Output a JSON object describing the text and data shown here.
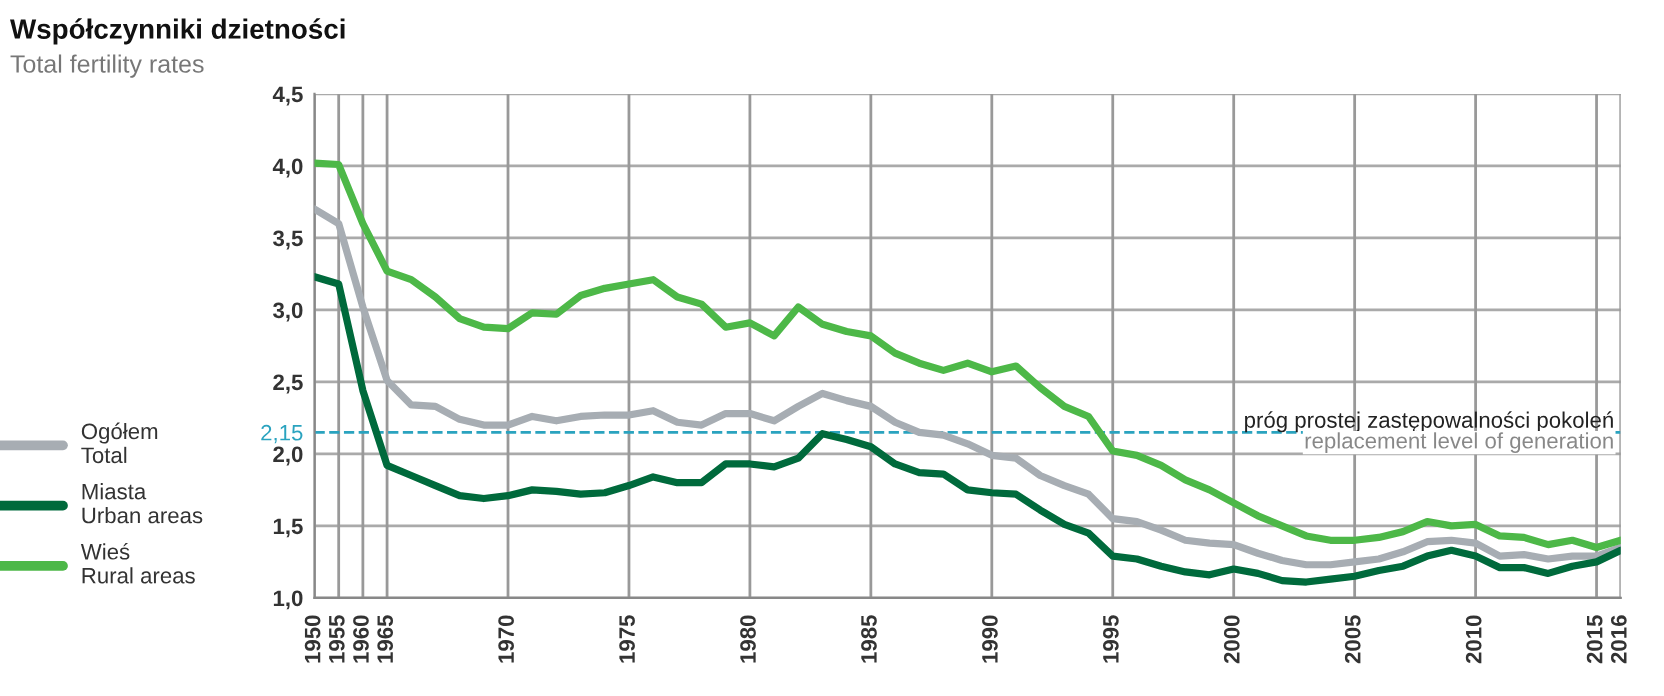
{
  "chart_data": {
    "type": "line",
    "title": "Współczynniki dzietności",
    "subtitle": "Total fertility rates",
    "categories": [
      "1950",
      "1955",
      "1960",
      "1965",
      null,
      null,
      null,
      null,
      "1970",
      null,
      null,
      null,
      null,
      "1975",
      null,
      null,
      null,
      null,
      "1980",
      null,
      null,
      null,
      null,
      "1985",
      null,
      null,
      null,
      null,
      "1990",
      null,
      null,
      null,
      null,
      "1995",
      null,
      null,
      null,
      null,
      "2000",
      null,
      null,
      null,
      null,
      "2005",
      null,
      null,
      null,
      null,
      "2010",
      null,
      null,
      null,
      null,
      "2015",
      "2016"
    ],
    "series": [
      {
        "name": "Ogółem\nTotal",
        "color": "#a7adb3",
        "values": [
          3.7,
          3.6,
          3.02,
          2.51,
          2.34,
          2.33,
          2.24,
          2.2,
          2.2,
          2.26,
          2.23,
          2.26,
          2.27,
          2.27,
          2.3,
          2.22,
          2.2,
          2.28,
          2.28,
          2.23,
          2.33,
          2.42,
          2.37,
          2.33,
          2.22,
          2.15,
          2.13,
          2.07,
          1.99,
          1.97,
          1.85,
          1.78,
          1.72,
          1.55,
          1.53,
          1.47,
          1.4,
          1.38,
          1.37,
          1.31,
          1.26,
          1.23,
          1.23,
          1.25,
          1.27,
          1.32,
          1.39,
          1.4,
          1.38,
          1.29,
          1.3,
          1.27,
          1.29,
          1.29,
          1.35
        ]
      },
      {
        "name": "Miasta\nUrban areas",
        "color": "#006a3c",
        "values": [
          3.23,
          3.18,
          2.44,
          1.92,
          1.85,
          1.78,
          1.71,
          1.69,
          1.71,
          1.75,
          1.74,
          1.72,
          1.73,
          1.78,
          1.84,
          1.8,
          1.8,
          1.93,
          1.93,
          1.91,
          1.97,
          2.14,
          2.1,
          2.05,
          1.93,
          1.87,
          1.86,
          1.75,
          1.73,
          1.72,
          1.61,
          1.51,
          1.45,
          1.29,
          1.27,
          1.22,
          1.18,
          1.16,
          1.2,
          1.17,
          1.12,
          1.11,
          1.13,
          1.15,
          1.19,
          1.22,
          1.29,
          1.33,
          1.29,
          1.21,
          1.21,
          1.17,
          1.22,
          1.25,
          1.33
        ]
      },
      {
        "name": "Wieś\nRural areas",
        "color": "#4db848",
        "values": [
          4.02,
          4.01,
          3.6,
          3.27,
          3.21,
          3.09,
          2.94,
          2.88,
          2.87,
          2.98,
          2.97,
          3.1,
          3.15,
          3.18,
          3.21,
          3.09,
          3.04,
          2.88,
          2.91,
          2.82,
          3.02,
          2.9,
          2.85,
          2.82,
          2.7,
          2.63,
          2.58,
          2.63,
          2.57,
          2.61,
          2.46,
          2.33,
          2.26,
          2.02,
          1.99,
          1.92,
          1.82,
          1.75,
          1.66,
          1.57,
          1.5,
          1.43,
          1.4,
          1.4,
          1.42,
          1.46,
          1.53,
          1.5,
          1.51,
          1.43,
          1.42,
          1.37,
          1.4,
          1.35,
          1.4
        ]
      }
    ],
    "ylim": [
      1.0,
      4.5
    ],
    "yticks": [
      {
        "value": 1.0,
        "label": "1,0"
      },
      {
        "value": 1.5,
        "label": "1,5"
      },
      {
        "value": 2.0,
        "label": "2,0"
      },
      {
        "value": 2.15,
        "label": "2,15"
      },
      {
        "value": 2.5,
        "label": "2,5"
      },
      {
        "value": 3.0,
        "label": "3,0"
      },
      {
        "value": 3.5,
        "label": "3,5"
      },
      {
        "value": 4.0,
        "label": "4,0"
      },
      {
        "value": 4.5,
        "label": "4,5"
      }
    ],
    "ref_lines": [
      {
        "axis": "y",
        "value": 2.15,
        "label": "próg prostej zastępowalności pokoleń",
        "color": "#2aa3bf",
        "line_style": "dashed"
      }
    ],
    "annotations": [
      "replacement level of generation"
    ],
    "grid": true,
    "legend": "left",
    "marker": "none",
    "line_style": "solid"
  }
}
